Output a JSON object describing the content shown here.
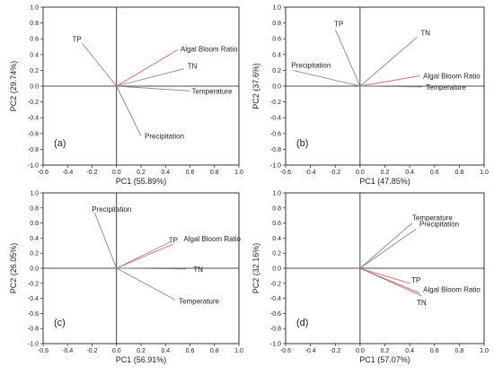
{
  "chart_data": [
    {
      "type": "scatter",
      "panel_label": "(a)",
      "xlabel": "PC1 (55.89%)",
      "ylabel": "PC2 (29.74%)",
      "xlim": [
        -0.6,
        1.0
      ],
      "ylim": [
        -1.0,
        1.0
      ],
      "x_ticks": [
        "-0.6",
        "-0.4",
        "-0.2",
        "0.0",
        "0.2",
        "0.4",
        "0.6",
        "0.8",
        "1.0"
      ],
      "y_ticks": [
        "-1.0",
        "-0.8",
        "-0.6",
        "-0.4",
        "-0.2",
        "0.0",
        "0.2",
        "0.4",
        "0.6",
        "0.8",
        "1.0"
      ],
      "vectors": [
        {
          "name": "TP",
          "x": -0.28,
          "y": 0.54,
          "color": "#888888"
        },
        {
          "name": "Algal Bloom Ratio",
          "x": 0.5,
          "y": 0.46,
          "color": "#e06060"
        },
        {
          "name": "TN",
          "x": 0.55,
          "y": 0.22,
          "color": "#888888"
        },
        {
          "name": "Temperature",
          "x": 0.6,
          "y": -0.06,
          "color": "#888888"
        },
        {
          "name": "Precipitation",
          "x": 0.2,
          "y": -0.63,
          "color": "#888888"
        }
      ]
    },
    {
      "type": "scatter",
      "panel_label": "(b)",
      "xlabel": "PC1 (47.85%)",
      "ylabel": "PC2 (37.6%)",
      "xlim": [
        -0.6,
        1.0
      ],
      "ylim": [
        -1.0,
        1.0
      ],
      "x_ticks": [
        "-0.6",
        "-0.4",
        "-0.2",
        "0.0",
        "0.2",
        "0.4",
        "0.6",
        "0.8",
        "1.0"
      ],
      "y_ticks": [
        "-1.0",
        "-0.8",
        "-0.6",
        "-0.4",
        "-0.2",
        "0.0",
        "0.2",
        "0.4",
        "0.6",
        "0.8",
        "1.0"
      ],
      "vectors": [
        {
          "name": "TP",
          "x": -0.2,
          "y": 0.72,
          "color": "#888888"
        },
        {
          "name": "TN",
          "x": 0.46,
          "y": 0.62,
          "color": "#888888"
        },
        {
          "name": "Precipitation",
          "x": -0.54,
          "y": 0.2,
          "color": "#888888"
        },
        {
          "name": "Algal Bloom Ratio",
          "x": 0.48,
          "y": 0.13,
          "color": "#e06060"
        },
        {
          "name": "Temperature",
          "x": 0.5,
          "y": -0.01,
          "color": "#888888"
        }
      ]
    },
    {
      "type": "scatter",
      "panel_label": "(c)",
      "xlabel": "PC1 (56.91%)",
      "ylabel": "PC2 (26.05%)",
      "xlim": [
        -0.6,
        1.0
      ],
      "ylim": [
        -1.0,
        1.0
      ],
      "x_ticks": [
        "-0.6",
        "-0.4",
        "-0.2",
        "0.0",
        "0.2",
        "0.4",
        "0.6",
        "0.8",
        "1.0"
      ],
      "y_ticks": [
        "-1.0",
        "-0.8",
        "-0.6",
        "-0.4",
        "-0.2",
        "0.0",
        "0.2",
        "0.4",
        "0.6",
        "0.8",
        "1.0"
      ],
      "vectors": [
        {
          "name": "Precipitation",
          "x": -0.18,
          "y": 0.74,
          "color": "#888888"
        },
        {
          "name": "TP",
          "x": 0.44,
          "y": 0.35,
          "color": "#888888"
        },
        {
          "name": "Algal Bloom Ratio",
          "x": 0.46,
          "y": 0.32,
          "color": "#e06060"
        },
        {
          "name": "TN",
          "x": 0.57,
          "y": -0.01,
          "color": "#888888"
        },
        {
          "name": "Temperature",
          "x": 0.48,
          "y": -0.42,
          "color": "#888888"
        }
      ]
    },
    {
      "type": "scatter",
      "panel_label": "(d)",
      "xlabel": "PC1 (57.07%)",
      "ylabel": "PC2 (32.16%)",
      "xlim": [
        -0.6,
        1.0
      ],
      "ylim": [
        -1.0,
        1.0
      ],
      "x_ticks": [
        "-0.6",
        "-0.4",
        "-0.2",
        "0.0",
        "0.2",
        "0.4",
        "0.6",
        "0.8",
        "1.0"
      ],
      "y_ticks": [
        "-1.0",
        "-0.8",
        "-0.6",
        "-0.4",
        "-0.2",
        "0.0",
        "0.2",
        "0.4",
        "0.6",
        "0.8",
        "1.0"
      ],
      "vectors": [
        {
          "name": "Temperature",
          "x": 0.42,
          "y": 0.6,
          "color": "#888888"
        },
        {
          "name": "Precipitation",
          "x": 0.45,
          "y": 0.52,
          "color": "#888888"
        },
        {
          "name": "TP",
          "x": 0.4,
          "y": -0.2,
          "color": "#e06060"
        },
        {
          "name": "Algal Bloom Ratio",
          "x": 0.48,
          "y": -0.33,
          "color": "#e06060"
        },
        {
          "name": "TN",
          "x": 0.5,
          "y": -0.37,
          "color": "#888888"
        }
      ]
    }
  ]
}
